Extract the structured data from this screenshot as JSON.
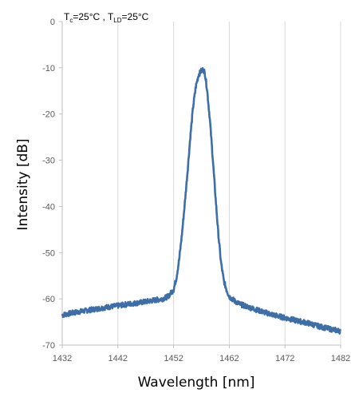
{
  "chart_data": {
    "type": "line",
    "title": "",
    "annotation": {
      "t1_main": "T",
      "t1_sub": "c",
      "t1_rest": "=25°C , ",
      "t2_main": "T",
      "t2_sub": "LD",
      "t2_rest": "=25°C"
    },
    "xlabel": "Wavelength [nm]",
    "ylabel": "Intensity [dB]",
    "xlim": [
      1432,
      1482
    ],
    "ylim": [
      -70,
      0
    ],
    "xticks": [
      "1432",
      "1442",
      "1452",
      "1462",
      "1472",
      "1482"
    ],
    "yticks": [
      "0",
      "-10",
      "-20",
      "-30",
      "-40",
      "-50",
      "-60",
      "-70"
    ],
    "grid": "vertical",
    "colors": {
      "line": "#3d6ea8",
      "grid": "#d9d9d9",
      "axis": "#bfbfbf"
    },
    "series": [
      {
        "x": [
          1432,
          1434,
          1436,
          1438,
          1440,
          1442,
          1444,
          1446,
          1448,
          1450,
          1451,
          1452,
          1452.5,
          1453,
          1453.5,
          1454,
          1454.5,
          1455,
          1455.5,
          1456,
          1456.5,
          1457,
          1457.3,
          1457.6,
          1458,
          1458.5,
          1459,
          1459.5,
          1460,
          1460.5,
          1461,
          1461.5,
          1462,
          1463,
          1464,
          1466,
          1468,
          1470,
          1472,
          1474,
          1476,
          1478,
          1480,
          1482
        ],
        "y": [
          -63.5,
          -63.0,
          -62.6,
          -62.2,
          -61.8,
          -61.5,
          -61.1,
          -60.8,
          -60.4,
          -60.0,
          -59.5,
          -58.0,
          -55.5,
          -51.5,
          -46.0,
          -39.5,
          -32.5,
          -25.0,
          -18.5,
          -14.0,
          -11.5,
          -10.6,
          -10.4,
          -11.0,
          -14.5,
          -21.0,
          -29.0,
          -37.5,
          -45.5,
          -52.0,
          -56.0,
          -58.0,
          -59.5,
          -60.5,
          -61.2,
          -62.0,
          -62.8,
          -63.5,
          -64.1,
          -64.7,
          -65.2,
          -65.9,
          -66.5,
          -67.0
        ]
      }
    ]
  }
}
